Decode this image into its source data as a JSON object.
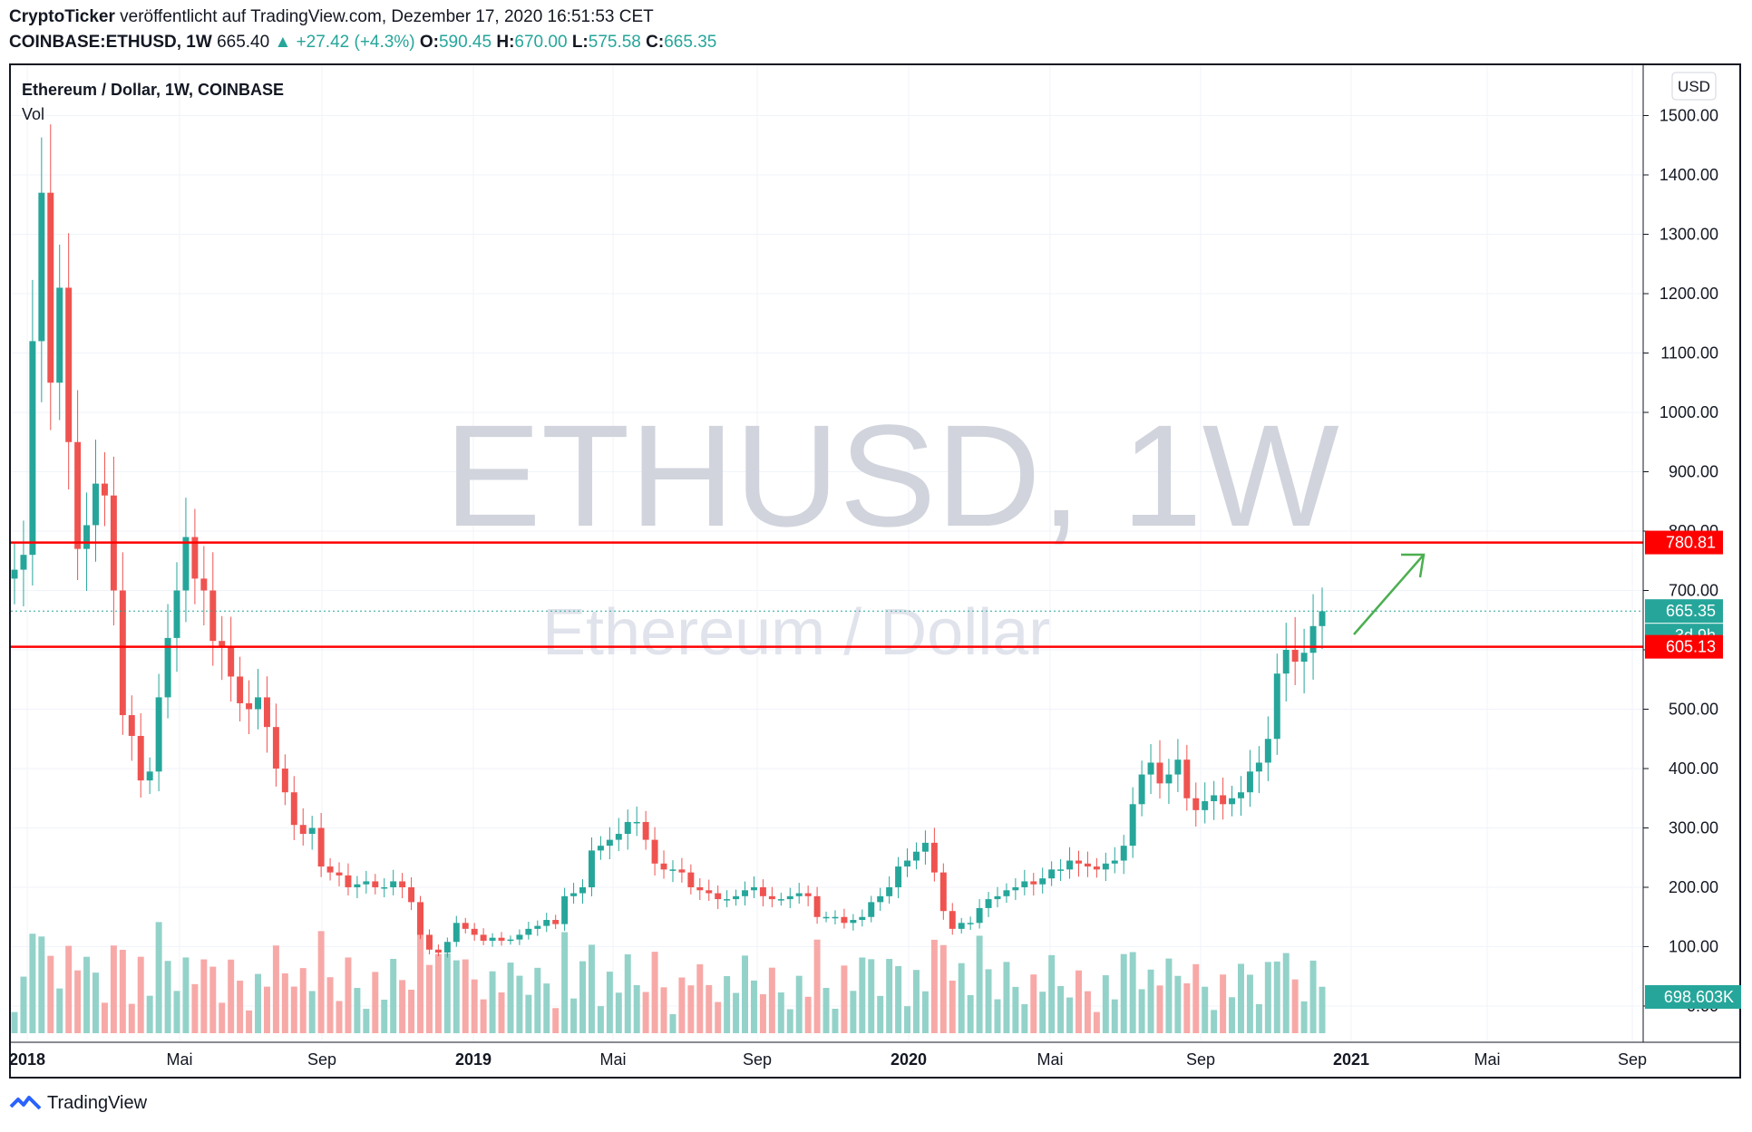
{
  "header": {
    "publisher": "CryptoTicker",
    "published_text": "veröffentlicht auf TradingView.com, Dezember 17, 2020 16:51:53 CET",
    "symbol": "COINBASE:ETHUSD, 1W",
    "last": "665.40",
    "change": "▲ +27.42 (+4.3%)",
    "o_label": "O:",
    "o_value": "590.45",
    "h_label": "H:",
    "h_value": "670.00",
    "l_label": "L:",
    "l_value": "575.58",
    "c_label": "C:",
    "c_value": "665.35"
  },
  "legend": {
    "title": "Ethereum / Dollar, 1W, COINBASE",
    "vol": "Vol"
  },
  "watermark": {
    "big": "ETHUSD, 1W",
    "small": "Ethereum / Dollar"
  },
  "currency_button": "USD",
  "price_badges": {
    "resistance": "780.81",
    "last": "665.35",
    "countdown": "3d 9h",
    "support": "605.13",
    "volume": "698.603K"
  },
  "footer": {
    "logo_text": "TradingView"
  },
  "colors": {
    "up": "#26a69a",
    "down": "#ef5350",
    "up_vol": "#93d2c9",
    "down_vol": "#f7a9a7",
    "hline": "#ff0000",
    "arrow": "#4caf50",
    "watermark": "#d1d4dc"
  },
  "chart_data": {
    "type": "candlestick",
    "title": "Ethereum / Dollar, 1W, COINBASE",
    "y_axis_unit": "USD",
    "y_ticks": [
      "0.00",
      "100.00",
      "200.00",
      "300.00",
      "400.00",
      "500.00",
      "600.00",
      "700.00",
      "800.00",
      "900.00",
      "1000.00",
      "1100.00",
      "1200.00",
      "1300.00",
      "1400.00",
      "1500.00"
    ],
    "x_ticks": [
      "2018",
      "Mai",
      "Sep",
      "2019",
      "Mai",
      "Sep",
      "2020",
      "Mai",
      "Sep",
      "2021",
      "Mai",
      "Sep"
    ],
    "horizontal_lines": [
      780.81,
      605.13
    ],
    "last_price": 665.35,
    "weekly_closes_approx": [
      735,
      760,
      1120,
      1370,
      1050,
      1210,
      950,
      770,
      810,
      880,
      860,
      700,
      490,
      455,
      380,
      395,
      520,
      620,
      700,
      790,
      720,
      700,
      615,
      605,
      555,
      510,
      500,
      520,
      470,
      400,
      360,
      305,
      290,
      300,
      235,
      225,
      220,
      200,
      205,
      210,
      200,
      200,
      210,
      200,
      175,
      120,
      95,
      90,
      108,
      140,
      130,
      120,
      110,
      115,
      110,
      112,
      120,
      130,
      135,
      145,
      138,
      185,
      190,
      200,
      262,
      270,
      280,
      290,
      310,
      310,
      280,
      240,
      230,
      230,
      225,
      200,
      195,
      190,
      180,
      180,
      185,
      195,
      200,
      185,
      180,
      180,
      185,
      190,
      185,
      150,
      150,
      150,
      140,
      145,
      150,
      175,
      185,
      200,
      235,
      245,
      260,
      275,
      225,
      160,
      130,
      140,
      140,
      165,
      180,
      185,
      195,
      200,
      210,
      205,
      215,
      230,
      230,
      245,
      240,
      235,
      230,
      240,
      245,
      270,
      340,
      390,
      410,
      375,
      390,
      415,
      350,
      330,
      345,
      355,
      340,
      350,
      360,
      395,
      410,
      450,
      560,
      600,
      580,
      595,
      640,
      665
    ],
    "volume_note": "weekly volume bars shown in lower pane (relative heights)",
    "arrow_annotation": "upward arrow pointing toward 780.81 level"
  }
}
